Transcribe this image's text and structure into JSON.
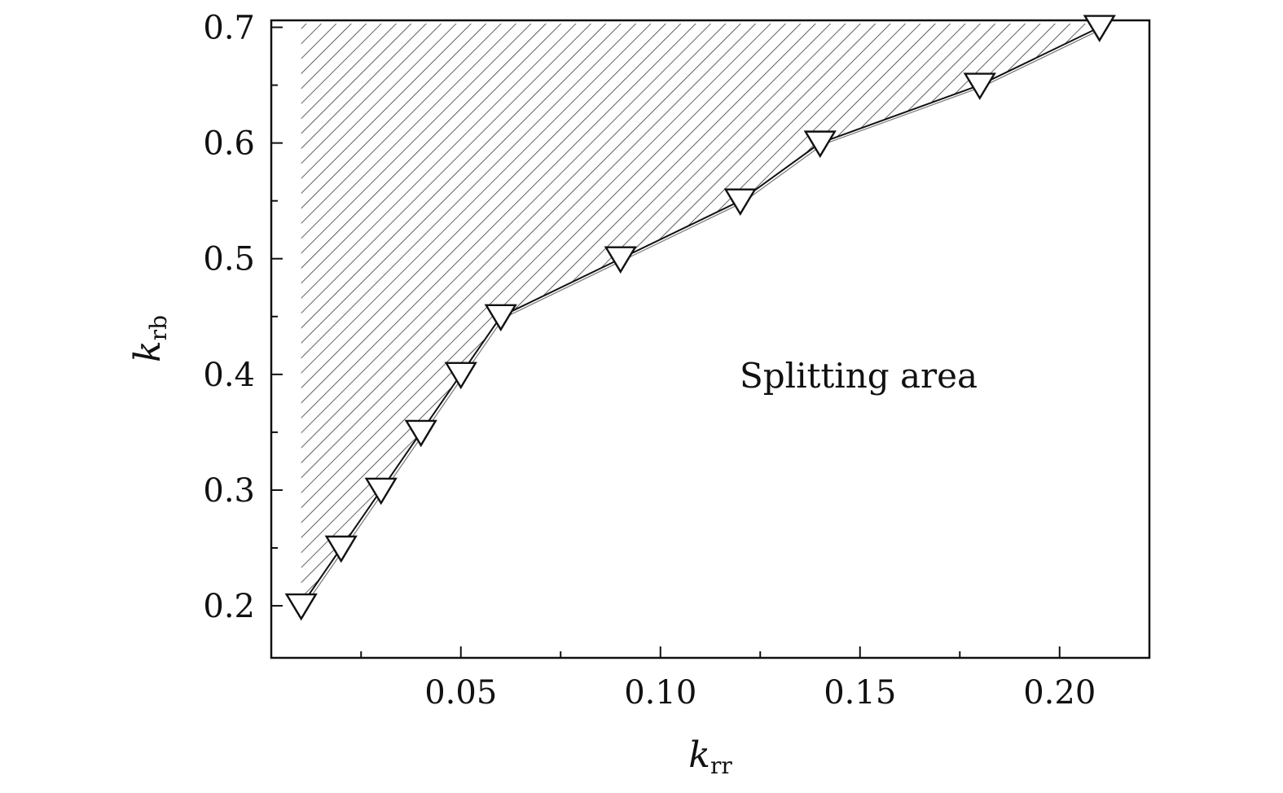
{
  "chart_data": {
    "type": "line",
    "x_label": {
      "main": "k",
      "sub": "rr"
    },
    "y_label": {
      "main": "k",
      "sub": "rb"
    },
    "xlim": [
      0.0025,
      0.2225
    ],
    "ylim": [
      0.155,
      0.706
    ],
    "x_ticks": [
      0.05,
      0.1,
      0.15,
      0.2
    ],
    "x_tick_labels": [
      "0.05",
      "0.10",
      "0.15",
      "0.20"
    ],
    "x_minor_ticks": [
      0.025,
      0.075,
      0.125,
      0.175
    ],
    "y_ticks": [
      0.2,
      0.3,
      0.4,
      0.5,
      0.6,
      0.7
    ],
    "y_tick_labels": [
      "0.2",
      "0.3",
      "0.4",
      "0.5",
      "0.6",
      "0.7"
    ],
    "y_minor_ticks": [
      0.25,
      0.35,
      0.45,
      0.55,
      0.65
    ],
    "series": [
      {
        "marker": "down-triangle",
        "x": [
          0.01,
          0.02,
          0.03,
          0.04,
          0.05,
          0.06,
          0.09,
          0.12,
          0.14,
          0.18,
          0.21
        ],
        "y": [
          0.2,
          0.25,
          0.3,
          0.35,
          0.4,
          0.45,
          0.5,
          0.55,
          0.6,
          0.65,
          0.7
        ]
      }
    ],
    "shaded_region": "above-left of curve (hatched)",
    "annotation": "Splitting area",
    "grid": false
  }
}
